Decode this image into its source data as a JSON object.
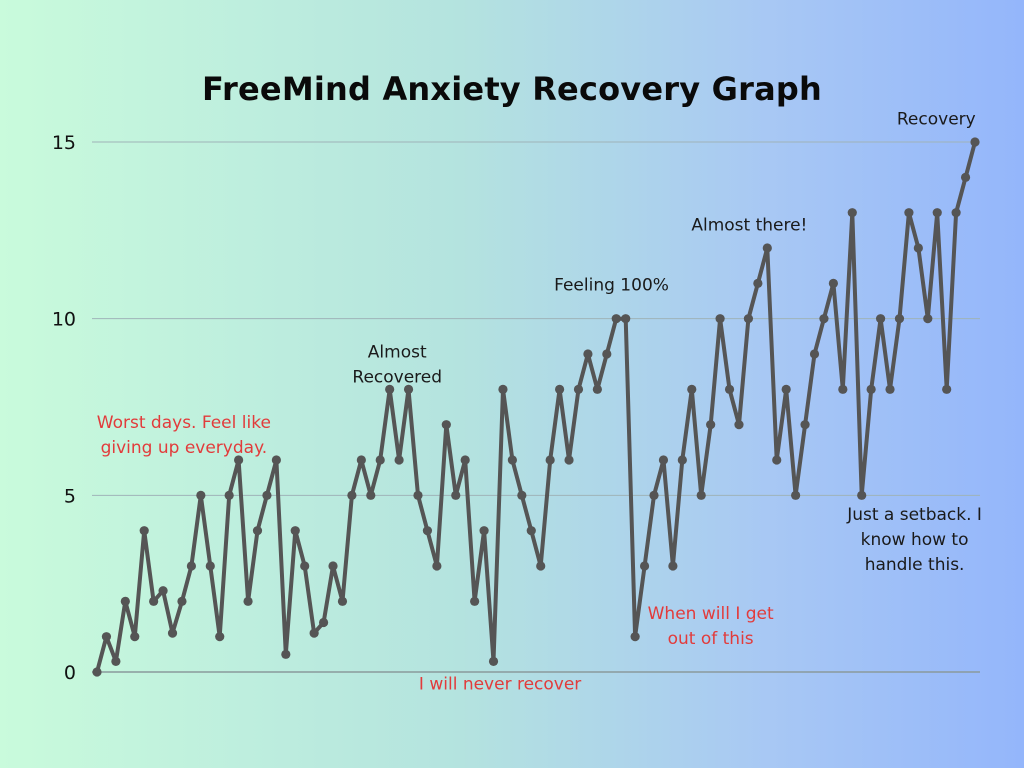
{
  "chart_data": {
    "type": "line",
    "title": "FreeMind Anxiety Recovery Graph",
    "xlabel": "",
    "ylabel": "",
    "ylim": [
      0,
      15
    ],
    "yticks": [
      0,
      5,
      10,
      15
    ],
    "grid": true,
    "legend": "none",
    "colors": {
      "line": "#555555",
      "grid": "#9fb3b8",
      "axis": "#8a9a9c",
      "annotation_dark": "#1a1a1a",
      "annotation_red": "#e23b3b"
    },
    "x": [
      0,
      1,
      2,
      3,
      4,
      5,
      6,
      7,
      8,
      9,
      10,
      11,
      12,
      13,
      14,
      15,
      16,
      17,
      18,
      19,
      20,
      21,
      22,
      23,
      24,
      25,
      26,
      27,
      28,
      29,
      30,
      31,
      32,
      33,
      34,
      35,
      36,
      37,
      38,
      39,
      40,
      41,
      42,
      43,
      44,
      45,
      46,
      47,
      48,
      49,
      50,
      51,
      52,
      53,
      54,
      55,
      56,
      57,
      58,
      59,
      60,
      61,
      62,
      63,
      64,
      65,
      66,
      67,
      68,
      69,
      70,
      71,
      72,
      73,
      74,
      75,
      76,
      77,
      78,
      79,
      80,
      81,
      82,
      83,
      84,
      85,
      86,
      87,
      88,
      89,
      90,
      91,
      92,
      93
    ],
    "series": [
      {
        "values": [
          0,
          1,
          0.3,
          2,
          1,
          4,
          2,
          2.3,
          1.1,
          2,
          3,
          5,
          3,
          1,
          5,
          6,
          2,
          4,
          5,
          6,
          0.5,
          4,
          3,
          1.1,
          1.4,
          3,
          2,
          5,
          6,
          5,
          6,
          8,
          6,
          8,
          5,
          4,
          3,
          7,
          5,
          6,
          2,
          4,
          0.3,
          8,
          6,
          5,
          4,
          3,
          6,
          8,
          6,
          8,
          9,
          8,
          9,
          10,
          10,
          1,
          3,
          5,
          6,
          3,
          6,
          8,
          5,
          7,
          10,
          8,
          7,
          10,
          11,
          12,
          6,
          8,
          5,
          7,
          9,
          10,
          11,
          8,
          13,
          5,
          8,
          10,
          8,
          10,
          13,
          12,
          10,
          13,
          8,
          13,
          14,
          15
        ]
      }
    ],
    "annotations": [
      {
        "text": [
          "Worst days. Feel like",
          "giving up everyday."
        ],
        "x": 9.2,
        "y": 6.9,
        "color": "red"
      },
      {
        "text": [
          "Almost",
          "Recovered"
        ],
        "x": 31.8,
        "y": 8.9,
        "color": "dark"
      },
      {
        "text": [
          "Feeling 100%"
        ],
        "x": 54.5,
        "y": 10.8,
        "color": "dark"
      },
      {
        "text": [
          "Almost there!"
        ],
        "x": 69.1,
        "y": 12.5,
        "color": "dark"
      },
      {
        "text": [
          "Recovery"
        ],
        "x": 88.9,
        "y": 15.5,
        "color": "dark"
      },
      {
        "text": [
          "I will never recover"
        ],
        "x": 42.7,
        "y": -0.5,
        "color": "red"
      },
      {
        "text": [
          "When will I get",
          "out of this"
        ],
        "x": 65,
        "y": 1.5,
        "color": "red"
      },
      {
        "text": [
          "Just a setback. I",
          "know how to",
          "handle this."
        ],
        "x": 86.6,
        "y": 4.3,
        "color": "dark"
      }
    ]
  }
}
